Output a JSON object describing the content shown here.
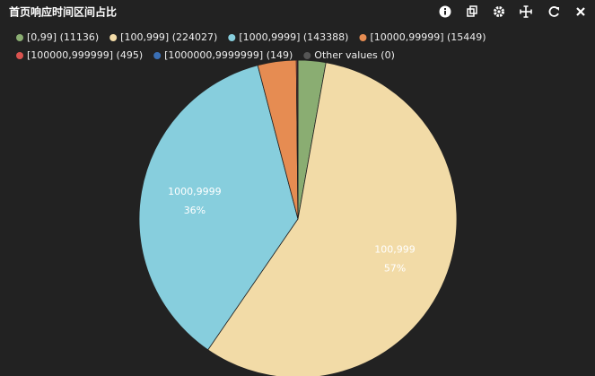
{
  "header": {
    "title": "首页响应时间区间占比"
  },
  "chart_data": {
    "type": "pie",
    "categories": [
      "[0,99] (11136)",
      "[100,999] (224027)",
      "[1000,9999] (143388)",
      "[10000,99999] (15449)",
      "[100000,999999] (495)",
      "[1000000,9999999] (149)",
      "Other values (0)"
    ],
    "values": [
      11136,
      224027,
      143388,
      15449,
      495,
      149,
      0
    ],
    "colors": [
      "#8aad72",
      "#f2dba7",
      "#87cedd",
      "#e68c52",
      "#d9534f",
      "#3a6fb5",
      "#555555"
    ],
    "slice_names": [
      null,
      "100,999",
      "1000,9999",
      null,
      null,
      null,
      null
    ],
    "value_labels": [
      null,
      "57%",
      "36%",
      null,
      null,
      null,
      null
    ],
    "legend": "top"
  }
}
